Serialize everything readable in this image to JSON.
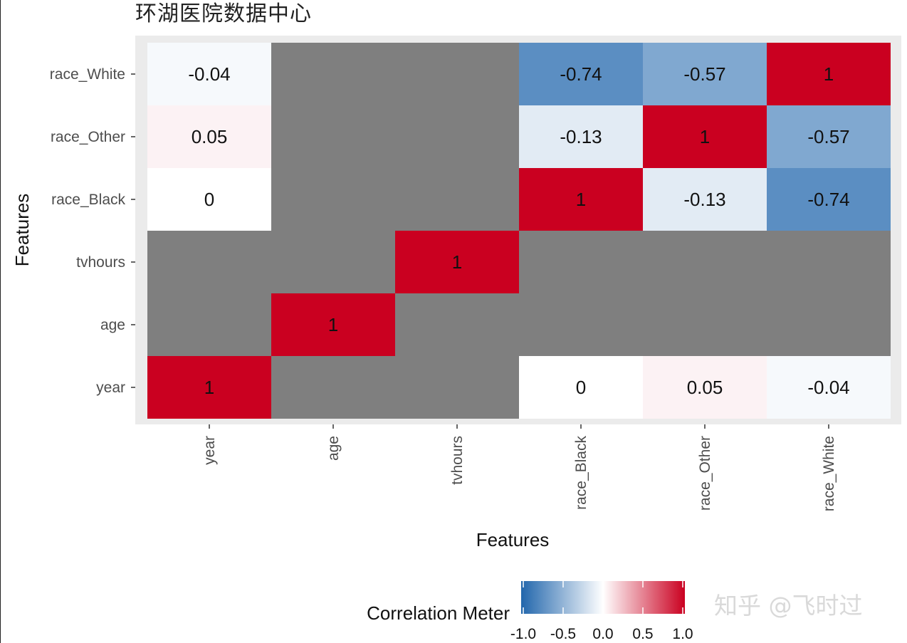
{
  "chart_title": "环湖医院数据中心",
  "watermark": "知乎 @飞时过",
  "chart_data": {
    "type": "heatmap",
    "title": "环湖医院数据中心",
    "xlabel": "Features",
    "ylabel": "Features",
    "x_categories": [
      "year",
      "age",
      "tvhours",
      "race_Black",
      "race_Other",
      "race_White"
    ],
    "y_categories": [
      "year",
      "age",
      "tvhours",
      "race_Black",
      "race_Other",
      "race_White"
    ],
    "cells": [
      {
        "x": "year",
        "y": "year",
        "value": 1,
        "label": "1"
      },
      {
        "x": "race_Black",
        "y": "year",
        "value": 0,
        "label": "0"
      },
      {
        "x": "race_Other",
        "y": "year",
        "value": 0.05,
        "label": "0.05"
      },
      {
        "x": "race_White",
        "y": "year",
        "value": -0.04,
        "label": "-0.04"
      },
      {
        "x": "age",
        "y": "age",
        "value": 1,
        "label": "1"
      },
      {
        "x": "tvhours",
        "y": "tvhours",
        "value": 1,
        "label": "1"
      },
      {
        "x": "year",
        "y": "race_Black",
        "value": 0,
        "label": "0"
      },
      {
        "x": "race_Black",
        "y": "race_Black",
        "value": 1,
        "label": "1"
      },
      {
        "x": "race_Other",
        "y": "race_Black",
        "value": -0.13,
        "label": "-0.13"
      },
      {
        "x": "race_White",
        "y": "race_Black",
        "value": -0.74,
        "label": "-0.74"
      },
      {
        "x": "year",
        "y": "race_Other",
        "value": 0.05,
        "label": "0.05"
      },
      {
        "x": "race_Black",
        "y": "race_Other",
        "value": -0.13,
        "label": "-0.13"
      },
      {
        "x": "race_Other",
        "y": "race_Other",
        "value": 1,
        "label": "1"
      },
      {
        "x": "race_White",
        "y": "race_Other",
        "value": -0.57,
        "label": "-0.57"
      },
      {
        "x": "year",
        "y": "race_White",
        "value": -0.04,
        "label": "-0.04"
      },
      {
        "x": "race_Black",
        "y": "race_White",
        "value": -0.74,
        "label": "-0.74"
      },
      {
        "x": "race_Other",
        "y": "race_White",
        "value": -0.57,
        "label": "-0.57"
      },
      {
        "x": "race_White",
        "y": "race_White",
        "value": 1,
        "label": "1"
      }
    ],
    "missing_color": "#7f7f7f",
    "colors": {
      "low": "#2166ac",
      "mid": "#ffffff",
      "high": "#ca0020"
    },
    "legend": {
      "title": "Correlation Meter",
      "position": "bottom",
      "range": [
        -1.0,
        1.0
      ],
      "ticks": [
        "-1.0",
        "-0.5",
        "0.0",
        "0.5",
        "1.0"
      ]
    },
    "panel_background": "#ebebeb"
  }
}
